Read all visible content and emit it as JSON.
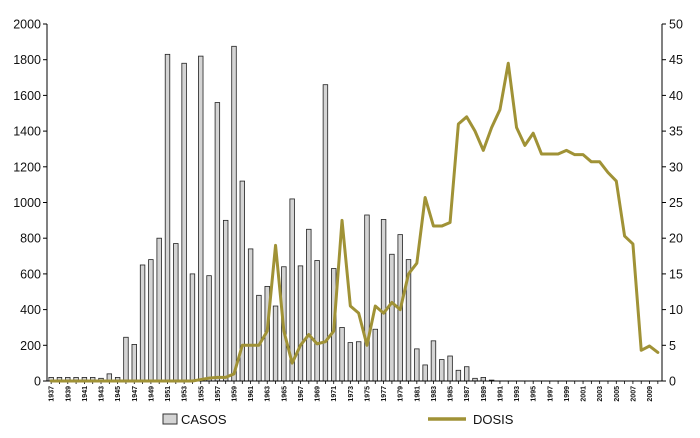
{
  "chart_data": {
    "type": "bar+line",
    "title": "",
    "xlabel": "",
    "ylabel": "",
    "y2label": "",
    "x": [
      1937,
      1938,
      1939,
      1940,
      1941,
      1942,
      1943,
      1944,
      1945,
      1946,
      1947,
      1948,
      1949,
      1950,
      1951,
      1952,
      1953,
      1954,
      1955,
      1956,
      1957,
      1958,
      1959,
      1960,
      1961,
      1962,
      1963,
      1964,
      1965,
      1966,
      1967,
      1968,
      1969,
      1970,
      1971,
      1972,
      1973,
      1974,
      1975,
      1976,
      1977,
      1978,
      1979,
      1980,
      1981,
      1982,
      1983,
      1984,
      1985,
      1986,
      1987,
      1988,
      1989,
      1990,
      1991,
      1992,
      1993,
      1994,
      1995,
      1996,
      1997,
      1998,
      1999,
      2000,
      2001,
      2002,
      2003,
      2004,
      2005,
      2006,
      2007,
      2008,
      2009,
      2010
    ],
    "x_tick_labels": [
      "1937",
      "1939",
      "1941",
      "1943",
      "1945",
      "1947",
      "1949",
      "1951",
      "1953",
      "1955",
      "1957",
      "1959",
      "1961",
      "1963",
      "1965",
      "1967",
      "1969",
      "1971",
      "1973",
      "1975",
      "1977",
      "1979",
      "1981",
      "1983",
      "1985",
      "1987",
      "1989",
      "1991",
      "1993",
      "1995",
      "1997",
      "1999",
      "2001",
      "2003",
      "2005",
      "2007",
      "2009"
    ],
    "ylim": [
      0,
      2000
    ],
    "y_ticks": [
      "0",
      "200",
      "400",
      "600",
      "800",
      "1000",
      "1200",
      "1400",
      "1600",
      "1800",
      "2000"
    ],
    "y2lim": [
      0,
      50
    ],
    "y2_ticks": [
      "0",
      "5",
      "10",
      "15",
      "20",
      "25",
      "30",
      "35",
      "40",
      "45",
      "50"
    ],
    "legend_position": "bottom",
    "series": [
      {
        "name": "CASOS",
        "type": "bar",
        "color": "#d4d4d4",
        "axis": "left",
        "values": [
          20,
          20,
          20,
          20,
          20,
          20,
          15,
          40,
          20,
          245,
          205,
          650,
          680,
          800,
          1830,
          770,
          1780,
          600,
          1820,
          590,
          1560,
          900,
          1875,
          1120,
          740,
          480,
          530,
          420,
          640,
          1020,
          645,
          850,
          675,
          1660,
          630,
          300,
          215,
          220,
          930,
          290,
          905,
          710,
          820,
          680,
          180,
          90,
          225,
          120,
          140,
          60,
          80,
          15,
          20,
          5,
          0,
          0,
          0,
          0,
          0,
          0,
          0,
          0,
          0,
          0,
          0,
          0,
          0,
          0,
          0,
          0,
          0,
          0,
          0,
          0
        ]
      },
      {
        "name": "DOSIS",
        "type": "line",
        "color": "#a09236",
        "axis": "right",
        "values": [
          0,
          0,
          0,
          0,
          0,
          0,
          0,
          0,
          0,
          0,
          0,
          0,
          0,
          0,
          0,
          0,
          0,
          0,
          0.2,
          0.4,
          0.5,
          0.5,
          1,
          5,
          5,
          5,
          7,
          19,
          7,
          2.5,
          5,
          6.5,
          5.2,
          5.5,
          7,
          22.5,
          10.5,
          9.5,
          5,
          10.5,
          9.5,
          11,
          10,
          15,
          16.5,
          25.7,
          21.7,
          21.7,
          22.2,
          36,
          37,
          35,
          32.3,
          35.5,
          38,
          44.5,
          35.5,
          33,
          34.7,
          31.8,
          31.8,
          31.8,
          32.3,
          31.7,
          31.7,
          30.7,
          30.7,
          29.2,
          28,
          20.3,
          19.2,
          4.3,
          4.9,
          4
        ]
      }
    ]
  }
}
